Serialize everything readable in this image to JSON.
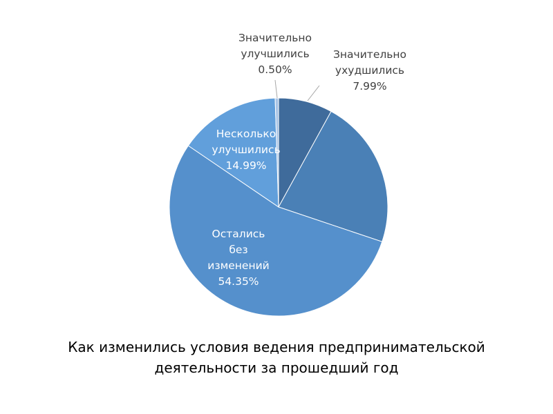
{
  "chart_data": {
    "type": "pie",
    "title": "Как изменились условия ведения предпринимательской деятельности за прошедший год",
    "categories": [
      "Значительно ухудшились",
      null,
      "Остались без изменений",
      "Несколько улучшились",
      "Значительно улучшились"
    ],
    "values": [
      7.99,
      22.17,
      54.35,
      14.99,
      0.5
    ],
    "value_labels": [
      "7.99%",
      null,
      "54.35%",
      "14.99%",
      "0.50%"
    ],
    "colors": [
      "#3f6b9b",
      "#4a80b6",
      "#5590cc",
      "#619fdb",
      "#a8c4e6"
    ]
  }
}
